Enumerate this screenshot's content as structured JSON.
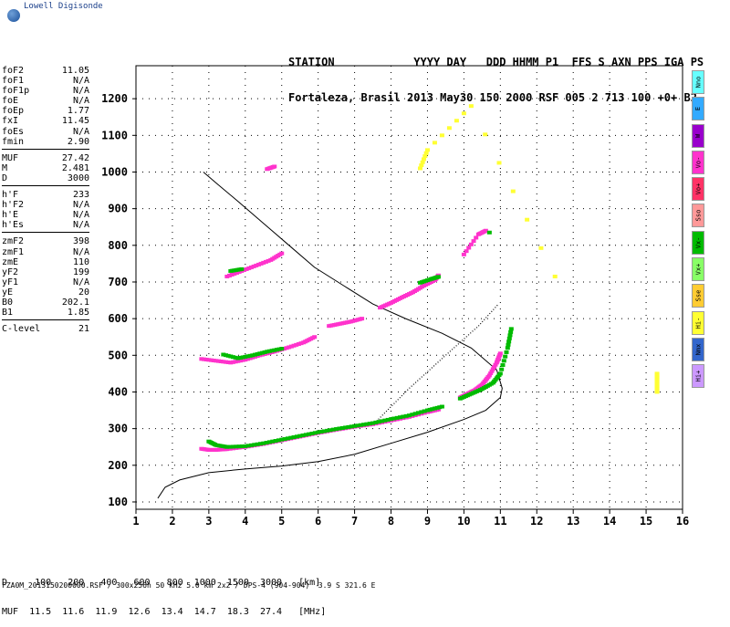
{
  "logo": {
    "text": "Lowell Digisonde"
  },
  "header": {
    "line1": "STATION            YYYY DAY   DDD HHMM P1  FFS S AXN PPS IGA PS",
    "line2": "Fortaleza, Brasil 2013 May30 150 2000 RSF 005 2 713 100 +0+ B2"
  },
  "params": [
    {
      "label": "foF2",
      "value": "11.05"
    },
    {
      "label": "foF1",
      "value": "N/A"
    },
    {
      "label": "foF1p",
      "value": "N/A"
    },
    {
      "label": "foE",
      "value": "N/A"
    },
    {
      "label": "foEp",
      "value": "1.77"
    },
    {
      "label": "fxI",
      "value": "11.45"
    },
    {
      "label": "foEs",
      "value": "N/A"
    },
    {
      "label": "fmin",
      "value": "2.90"
    },
    {
      "label": "MUF",
      "value": "27.42"
    },
    {
      "label": "M",
      "value": "2.481"
    },
    {
      "label": "D",
      "value": "3000"
    },
    {
      "label": "h'F",
      "value": "233"
    },
    {
      "label": "h'F2",
      "value": "N/A"
    },
    {
      "label": "h'E",
      "value": "N/A"
    },
    {
      "label": "h'Es",
      "value": "N/A"
    },
    {
      "label": "zmF2",
      "value": "398"
    },
    {
      "label": "zmF1",
      "value": "N/A"
    },
    {
      "label": "zmE",
      "value": "110"
    },
    {
      "label": "yF2",
      "value": "199"
    },
    {
      "label": "yF1",
      "value": "N/A"
    },
    {
      "label": "yE",
      "value": "20"
    },
    {
      "label": "B0",
      "value": "202.1"
    },
    {
      "label": "B1",
      "value": "1.85"
    },
    {
      "label": "C-level",
      "value": "21"
    }
  ],
  "mode_legend": [
    {
      "label": "Nno",
      "color": "#66ffff"
    },
    {
      "label": "E",
      "color": "#33aaff"
    },
    {
      "label": "W",
      "color": "#9900cc"
    },
    {
      "label": "Vo-",
      "color": "#ff33cc"
    },
    {
      "label": "Vo+",
      "color": "#ff3366"
    },
    {
      "label": "Sso",
      "color": "#ff9999"
    },
    {
      "label": "Vx-",
      "color": "#00bb00"
    },
    {
      "label": "Vx+",
      "color": "#88ff66"
    },
    {
      "label": "Sse",
      "color": "#ffcc33"
    },
    {
      "label": "Hi-",
      "color": "#ffff33"
    },
    {
      "label": "Nmx",
      "color": "#3366cc"
    },
    {
      "label": "Hi+",
      "color": "#cc99ff"
    }
  ],
  "bottom_table": {
    "line1": "D     100   200   400   600   800  1000  1500  3000   [km]",
    "line2": "MUF  11.5  11.6  11.9  12.6  13.4  14.7  18.3  27.4   [MHz]"
  },
  "footer": "FZA0M_2013150200000.RSF / 300x256h 50 kHz 5.0 km 2x2 / DPS-4 (904-904)  3.9 S 321.6 E",
  "chart_data": {
    "type": "scatter",
    "x_ticks": [
      "1",
      "2",
      "3",
      "4",
      "5",
      "6",
      "7",
      "8",
      "9",
      "10",
      "11",
      "12",
      "13",
      "14",
      "15",
      "16"
    ],
    "y_ticks": [
      "100",
      "200",
      "300",
      "400",
      "500",
      "600",
      "700",
      "800",
      "900",
      "1000",
      "1100",
      "1200"
    ],
    "xlim": [
      1,
      16
    ],
    "ylim": [
      80,
      1290
    ],
    "grid": true,
    "series": [
      {
        "color": "#ff33cc",
        "x": [
          2.8,
          3.0,
          3.2,
          3.5,
          4,
          4.5,
          5,
          5.5,
          6,
          6.5,
          7,
          7.5,
          8,
          8.5,
          9,
          9.3
        ],
        "y": [
          245,
          242,
          242,
          244,
          250,
          258,
          268,
          278,
          288,
          297,
          305,
          312,
          322,
          332,
          345,
          352
        ]
      },
      {
        "color": "#00bb00",
        "x": [
          3.0,
          3.2,
          3.5,
          4,
          4.5,
          5,
          5.5,
          6,
          6.5,
          7,
          7.5,
          8,
          8.5,
          9,
          9.4
        ],
        "y": [
          265,
          255,
          250,
          252,
          260,
          270,
          280,
          290,
          299,
          307,
          315,
          326,
          336,
          350,
          360
        ]
      },
      {
        "color": "#ff33cc",
        "x": [
          9.9,
          10.1,
          10.3,
          10.5,
          10.7,
          10.9,
          11.0
        ],
        "y": [
          385,
          395,
          405,
          420,
          445,
          480,
          505
        ]
      },
      {
        "color": "#00bb00",
        "x": [
          9.9,
          10.2,
          10.5,
          10.8,
          11.0,
          11.2,
          11.3
        ],
        "y": [
          382,
          395,
          408,
          425,
          450,
          520,
          572
        ]
      },
      {
        "color": "#ff33cc",
        "x": [
          2.8,
          3.2,
          3.6,
          4.0,
          4.4,
          4.8,
          5.2,
          5.6,
          5.9
        ],
        "y": [
          490,
          485,
          480,
          488,
          500,
          510,
          522,
          535,
          550
        ]
      },
      {
        "color": "#00bb00",
        "x": [
          3.4,
          3.8,
          4.2,
          4.6,
          5.0
        ],
        "y": [
          502,
          492,
          500,
          510,
          518
        ]
      },
      {
        "color": "#ff33cc",
        "x": [
          6.3,
          6.6,
          6.9,
          7.2
        ],
        "y": [
          580,
          586,
          592,
          600
        ]
      },
      {
        "color": "#ff33cc",
        "x": [
          7.7,
          8.0,
          8.3,
          8.6,
          8.9,
          9.2,
          9.3
        ],
        "y": [
          630,
          643,
          658,
          672,
          690,
          705,
          718
        ]
      },
      {
        "color": "#00bb00",
        "x": [
          8.8,
          9.1,
          9.3
        ],
        "y": [
          698,
          708,
          714
        ]
      },
      {
        "color": "#ff33cc",
        "x": [
          3.5,
          3.9,
          4.3,
          4.7,
          5.0
        ],
        "y": [
          715,
          730,
          745,
          760,
          778
        ]
      },
      {
        "color": "#00bb00",
        "x": [
          3.6,
          3.9
        ],
        "y": [
          730,
          735
        ]
      },
      {
        "color": "#ff33cc",
        "x": [
          4.6,
          4.8
        ],
        "y": [
          1008,
          1015
        ]
      },
      {
        "color": "#ff33cc",
        "x": [
          10.0,
          10.4,
          10.6
        ],
        "y": [
          775,
          830,
          840
        ]
      },
      {
        "color": "#00bb00",
        "x": [
          10.7
        ],
        "y": [
          835
        ]
      },
      {
        "color": "#ffff33",
        "x": [
          15.3,
          15.3,
          15.3
        ],
        "y": [
          400,
          425,
          450
        ]
      },
      {
        "color": "#ffff33",
        "x": [
          8.8,
          9.0,
          10.2,
          12.5
        ],
        "y": [
          1010,
          1060,
          1180,
          715
        ]
      }
    ],
    "profile": {
      "x": [
        1.6,
        1.8,
        2.2,
        3,
        4,
        5,
        6,
        7,
        8,
        9,
        10,
        10.6,
        11.0,
        11.05,
        10.9,
        10.2,
        9.4,
        8.4,
        7.5,
        6.7,
        5.9,
        5.2,
        4.5,
        3.8,
        3.2,
        2.85
      ],
      "y": [
        110,
        140,
        160,
        180,
        190,
        198,
        210,
        230,
        260,
        290,
        325,
        350,
        385,
        410,
        460,
        520,
        560,
        600,
        640,
        690,
        740,
        800,
        860,
        920,
        970,
        1000
      ]
    },
    "trace_line": {
      "x": [
        7.6,
        8.5,
        9.5,
        10.4,
        10.95
      ],
      "y": [
        320,
        410,
        500,
        580,
        640
      ]
    }
  }
}
